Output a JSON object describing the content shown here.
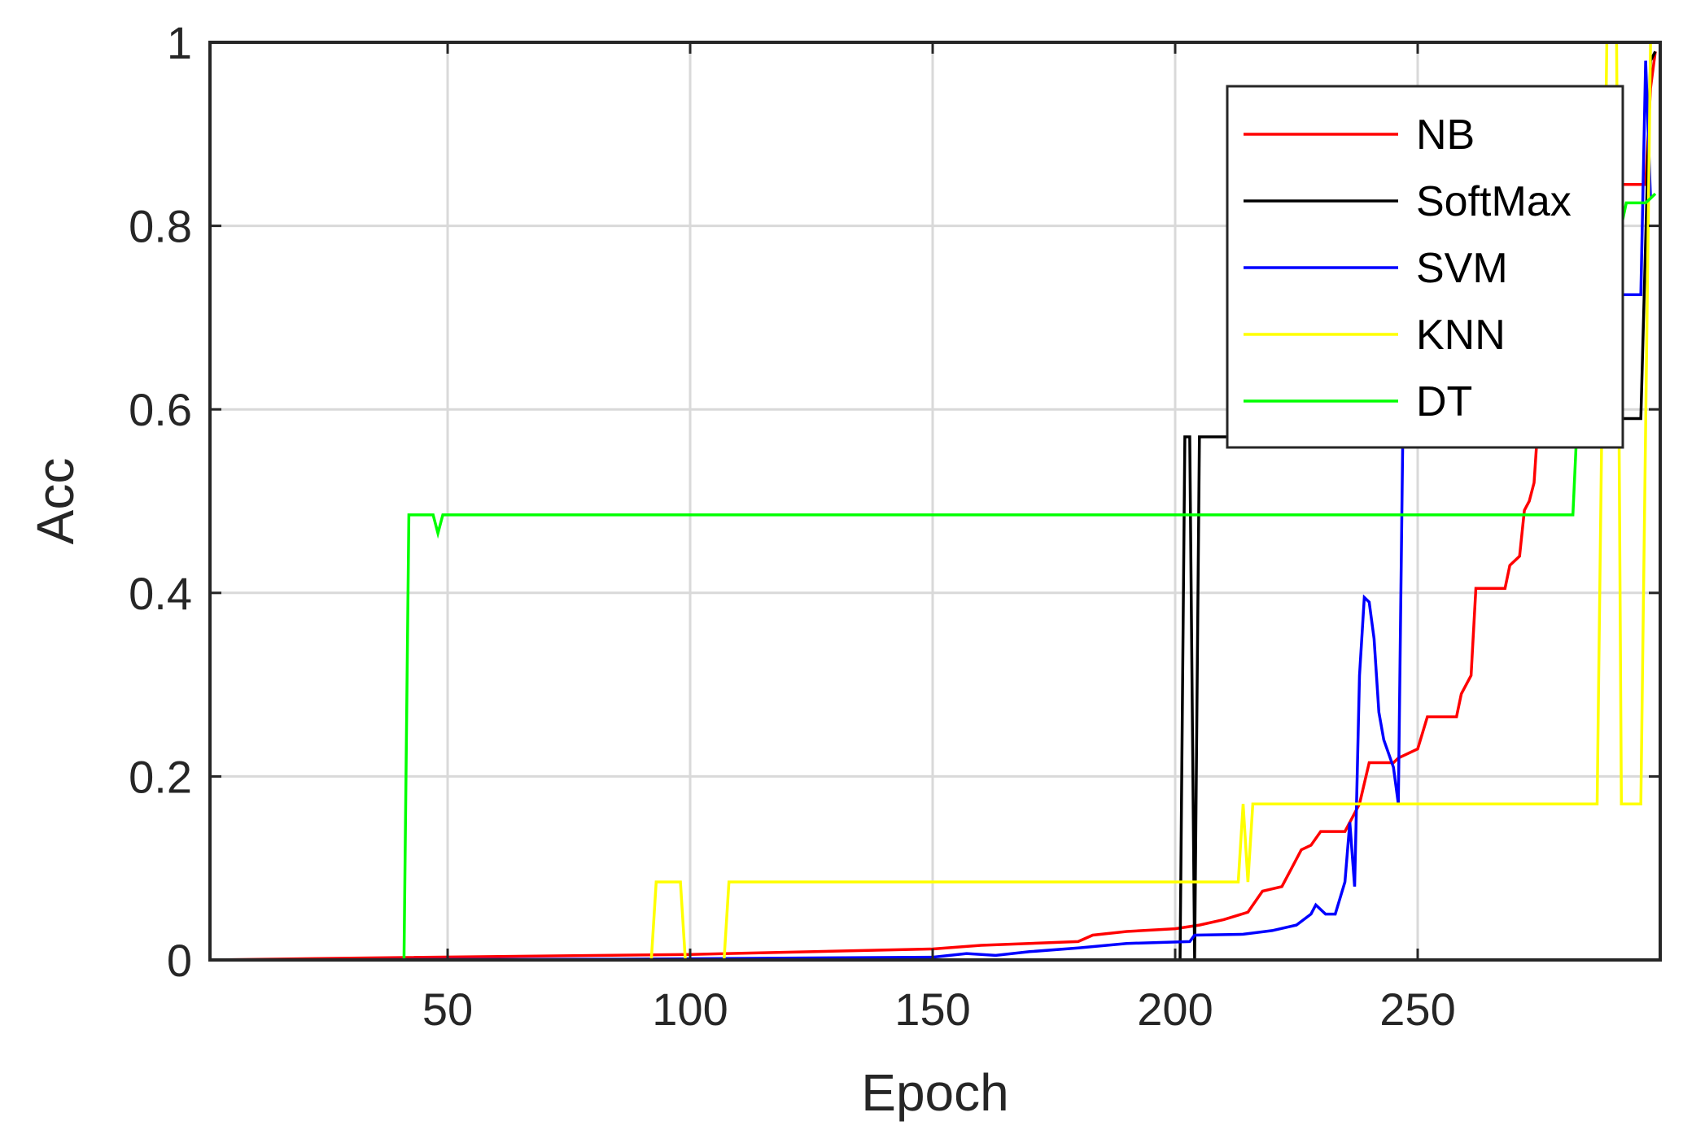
{
  "chart_data": {
    "type": "line",
    "xlabel": "Epoch",
    "ylabel": "Acc",
    "xlim": [
      1,
      300
    ],
    "ylim": [
      0,
      1
    ],
    "xticks": [
      50,
      100,
      150,
      200,
      250
    ],
    "yticks": [
      0,
      0.2,
      0.4,
      0.6,
      0.8,
      1
    ],
    "xtick_labels": [
      "50",
      "100",
      "150",
      "200",
      "250"
    ],
    "ytick_labels": [
      "0",
      "0.2",
      "0.4",
      "0.6",
      "0.8",
      "1"
    ],
    "grid": true,
    "legend_position": "top-right",
    "series": [
      {
        "name": "NB",
        "color": "#ff0000",
        "points": [
          [
            1,
            0
          ],
          [
            30,
            0.002
          ],
          [
            100,
            0.006
          ],
          [
            150,
            0.012
          ],
          [
            160,
            0.016
          ],
          [
            180,
            0.02
          ],
          [
            183,
            0.027
          ],
          [
            190,
            0.031
          ],
          [
            200,
            0.034
          ],
          [
            205,
            0.038
          ],
          [
            210,
            0.044
          ],
          [
            215,
            0.052
          ],
          [
            218,
            0.075
          ],
          [
            222,
            0.08
          ],
          [
            224,
            0.1
          ],
          [
            226,
            0.12
          ],
          [
            228,
            0.125
          ],
          [
            230,
            0.14
          ],
          [
            235,
            0.14
          ],
          [
            236,
            0.15
          ],
          [
            238,
            0.17
          ],
          [
            240,
            0.215
          ],
          [
            245,
            0.215
          ],
          [
            246,
            0.22
          ],
          [
            250,
            0.23
          ],
          [
            252,
            0.265
          ],
          [
            258,
            0.265
          ],
          [
            259,
            0.29
          ],
          [
            261,
            0.31
          ],
          [
            262,
            0.405
          ],
          [
            268,
            0.405
          ],
          [
            269,
            0.43
          ],
          [
            271,
            0.44
          ],
          [
            272,
            0.49
          ],
          [
            273,
            0.5
          ],
          [
            274,
            0.52
          ],
          [
            275,
            0.6
          ],
          [
            276,
            0.68
          ],
          [
            279,
            0.72
          ],
          [
            283,
            0.79
          ],
          [
            286,
            0.84
          ],
          [
            289,
            0.845
          ],
          [
            297,
            0.845
          ],
          [
            298,
            0.95
          ],
          [
            299,
            0.99
          ]
        ]
      },
      {
        "name": "SoftMax",
        "color": "#000000",
        "points": [
          [
            1,
            0
          ],
          [
            201,
            0
          ],
          [
            202,
            0.57
          ],
          [
            203,
            0.57
          ],
          [
            204,
            0
          ],
          [
            205,
            0.57
          ],
          [
            206,
            0.57
          ],
          [
            270,
            0.57
          ],
          [
            273,
            0.59
          ],
          [
            296,
            0.59
          ],
          [
            298,
            0.98
          ],
          [
            299,
            0.99
          ]
        ]
      },
      {
        "name": "SVM",
        "color": "#0000ff",
        "points": [
          [
            1,
            0
          ],
          [
            90,
            0.001
          ],
          [
            150,
            0.003
          ],
          [
            157,
            0.007
          ],
          [
            163,
            0.005
          ],
          [
            170,
            0.009
          ],
          [
            180,
            0.013
          ],
          [
            190,
            0.018
          ],
          [
            203,
            0.02
          ],
          [
            204,
            0.027
          ],
          [
            214,
            0.028
          ],
          [
            220,
            0.032
          ],
          [
            225,
            0.038
          ],
          [
            228,
            0.05
          ],
          [
            229,
            0.06
          ],
          [
            231,
            0.05
          ],
          [
            233,
            0.05
          ],
          [
            235,
            0.085
          ],
          [
            236,
            0.15
          ],
          [
            237,
            0.08
          ],
          [
            238,
            0.31
          ],
          [
            239,
            0.395
          ],
          [
            240,
            0.39
          ],
          [
            241,
            0.35
          ],
          [
            242,
            0.27
          ],
          [
            243,
            0.24
          ],
          [
            245,
            0.21
          ],
          [
            246,
            0.17
          ],
          [
            247,
            0.6
          ],
          [
            248,
            0.66
          ],
          [
            252,
            0.72
          ],
          [
            260,
            0.725
          ],
          [
            296,
            0.725
          ],
          [
            297,
            0.98
          ],
          [
            298,
            0.83
          ]
        ]
      },
      {
        "name": "KNN",
        "color": "#ffff00",
        "points": [
          [
            1,
            0
          ],
          [
            92,
            0
          ],
          [
            93,
            0.085
          ],
          [
            98,
            0.085
          ],
          [
            99,
            0
          ],
          [
            107,
            0
          ],
          [
            108,
            0.085
          ],
          [
            213,
            0.085
          ],
          [
            214,
            0.17
          ],
          [
            215,
            0.085
          ],
          [
            216,
            0.17
          ],
          [
            287,
            0.17
          ],
          [
            288,
            0.6
          ],
          [
            289,
            1
          ],
          [
            291,
            1
          ],
          [
            292,
            0.17
          ],
          [
            295,
            0.17
          ],
          [
            296,
            0.17
          ],
          [
            298,
            1
          ],
          [
            299,
            1
          ]
        ]
      },
      {
        "name": "DT",
        "color": "#00ff00",
        "points": [
          [
            1,
            0
          ],
          [
            41,
            0
          ],
          [
            42,
            0.485
          ],
          [
            47,
            0.485
          ],
          [
            48,
            0.465
          ],
          [
            49,
            0.485
          ],
          [
            282,
            0.485
          ],
          [
            283,
            0.6
          ],
          [
            284,
            0.72
          ],
          [
            285,
            0.785
          ],
          [
            290,
            0.785
          ],
          [
            292,
            0.8
          ],
          [
            293,
            0.825
          ],
          [
            297,
            0.825
          ],
          [
            298,
            0.83
          ],
          [
            299,
            0.835
          ]
        ]
      }
    ]
  }
}
